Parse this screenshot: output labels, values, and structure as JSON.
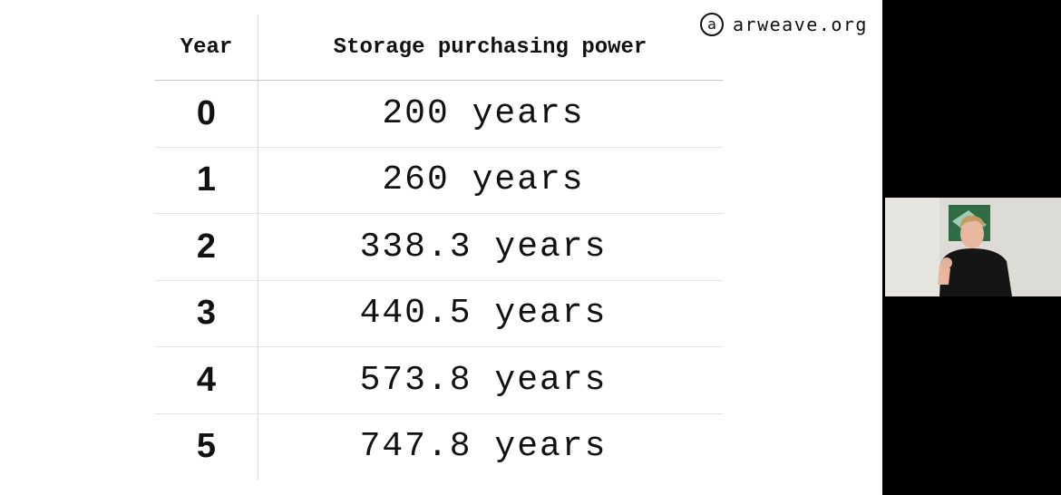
{
  "logo": {
    "symbol": "a",
    "text": "arweave.org"
  },
  "table": {
    "headers": {
      "year": "Year",
      "power": "Storage purchasing power"
    },
    "rows": [
      {
        "year": "0",
        "power": "200 years"
      },
      {
        "year": "1",
        "power": "260 years"
      },
      {
        "year": "2",
        "power": "338.3 years"
      },
      {
        "year": "3",
        "power": "440.5 years"
      },
      {
        "year": "4",
        "power": "573.8 years"
      },
      {
        "year": "5",
        "power": "747.8 years"
      }
    ]
  },
  "colors": {
    "slide_bg": "#ffffff",
    "frame_bg": "#000000",
    "text": "#111111",
    "divider": "#c9c9c9"
  },
  "webcam": {
    "present": true
  }
}
